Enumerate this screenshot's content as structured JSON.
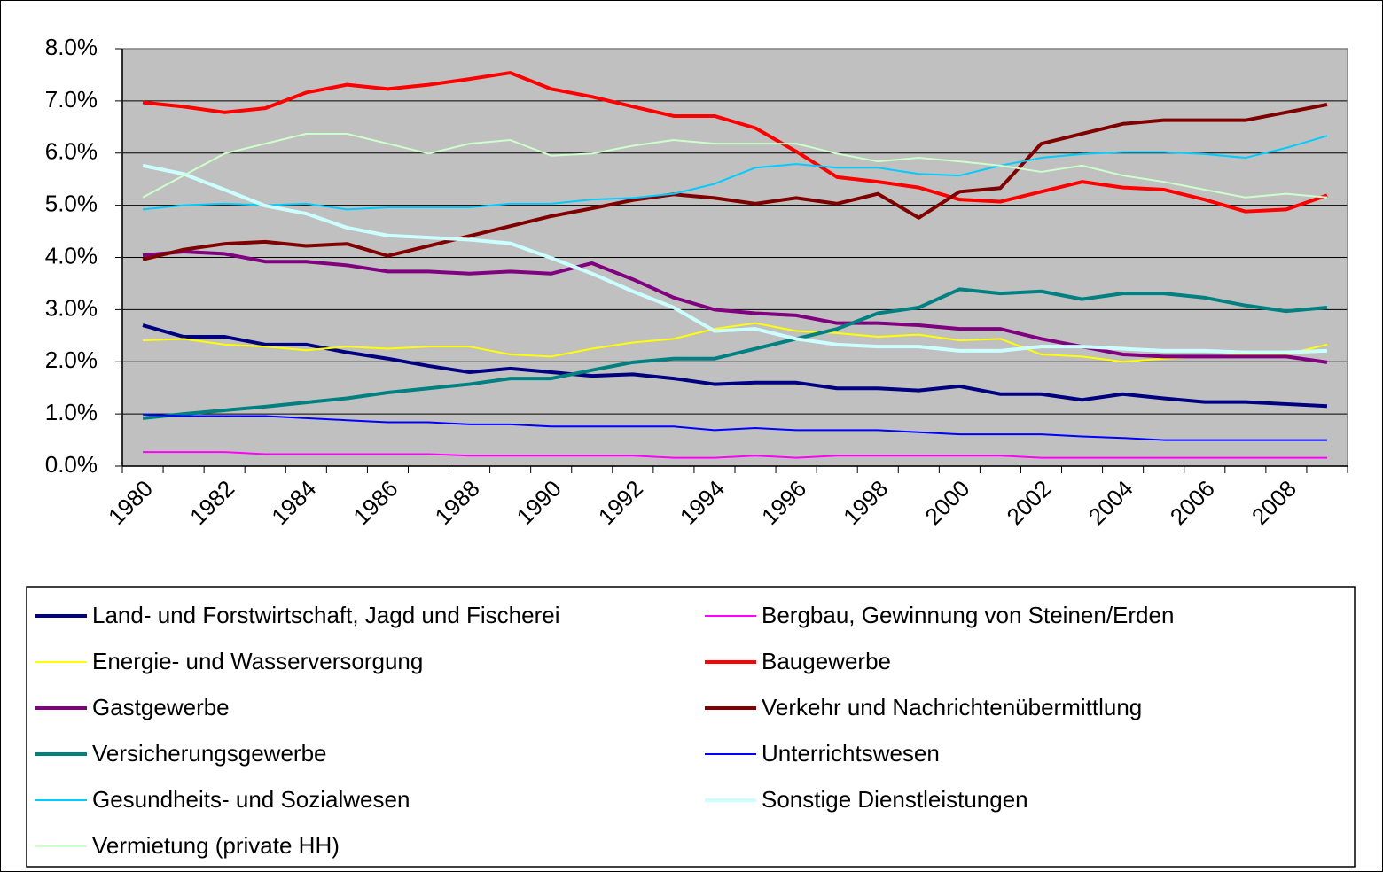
{
  "chart_data": {
    "type": "line",
    "categories": [
      "1980",
      null,
      "1982",
      null,
      "1984",
      null,
      "1986",
      null,
      "1988",
      null,
      "1990",
      null,
      "1992",
      null,
      "1994",
      null,
      "1996",
      null,
      "1998",
      null,
      "2000",
      null,
      "2002",
      null,
      "2004",
      null,
      "2006",
      null,
      "2008",
      null
    ],
    "ylim": [
      0,
      8
    ],
    "yticks": [
      {
        "value": 0,
        "label": "0.0%"
      },
      {
        "value": 1,
        "label": "1.0%"
      },
      {
        "value": 2,
        "label": "2.0%"
      },
      {
        "value": 3,
        "label": "3.0%"
      },
      {
        "value": 4,
        "label": "4.0%"
      },
      {
        "value": 5,
        "label": "5.0%"
      },
      {
        "value": 6,
        "label": "6.0%"
      },
      {
        "value": 7,
        "label": "7.0%"
      },
      {
        "value": 8,
        "label": "8.0%"
      }
    ],
    "grid": true,
    "legend": "bottom",
    "background": "#c0c0c0",
    "series": [
      {
        "name": "Land- und Forstwirtschaft, Jagd und Fischerei",
        "color": "#000080",
        "width": 4,
        "values": [
          2.7,
          2.48,
          2.48,
          2.33,
          2.33,
          2.18,
          2.06,
          1.92,
          1.8,
          1.87,
          1.8,
          1.73,
          1.76,
          1.68,
          1.57,
          1.6,
          1.6,
          1.49,
          1.49,
          1.45,
          1.53,
          1.38,
          1.38,
          1.27,
          1.38,
          1.3,
          1.23,
          1.23,
          1.19,
          1.15
        ]
      },
      {
        "name": "Bergbau, Gewinnung von Steinen/Erden",
        "color": "#ff00ff",
        "width": 2,
        "values": [
          0.27,
          0.27,
          0.27,
          0.23,
          0.23,
          0.23,
          0.23,
          0.23,
          0.2,
          0.2,
          0.2,
          0.2,
          0.2,
          0.16,
          0.16,
          0.2,
          0.16,
          0.2,
          0.2,
          0.2,
          0.2,
          0.2,
          0.16,
          0.16,
          0.16,
          0.16,
          0.16,
          0.16,
          0.16,
          0.16
        ]
      },
      {
        "name": "Energie- und Wasserversorgung",
        "color": "#ffff00",
        "width": 2,
        "values": [
          2.41,
          2.44,
          2.33,
          2.29,
          2.22,
          2.29,
          2.25,
          2.29,
          2.29,
          2.14,
          2.1,
          2.25,
          2.37,
          2.44,
          2.63,
          2.74,
          2.59,
          2.55,
          2.48,
          2.52,
          2.41,
          2.44,
          2.14,
          2.1,
          2.0,
          2.06,
          2.1,
          2.14,
          2.14,
          2.33
        ]
      },
      {
        "name": "Baugewerbe",
        "color": "#ff0000",
        "width": 4,
        "values": [
          6.97,
          6.89,
          6.78,
          6.86,
          7.16,
          7.31,
          7.23,
          7.31,
          7.42,
          7.54,
          7.23,
          7.08,
          6.89,
          6.71,
          6.71,
          6.48,
          6.03,
          5.54,
          5.45,
          5.34,
          5.11,
          5.07,
          5.26,
          5.45,
          5.34,
          5.3,
          5.11,
          4.88,
          4.92,
          5.19
        ]
      },
      {
        "name": "Gastgewerbe",
        "color": "#800080",
        "width": 4,
        "values": [
          4.04,
          4.11,
          4.07,
          3.92,
          3.92,
          3.85,
          3.73,
          3.73,
          3.69,
          3.73,
          3.69,
          3.89,
          3.58,
          3.23,
          3.0,
          2.93,
          2.89,
          2.74,
          2.74,
          2.7,
          2.63,
          2.63,
          2.44,
          2.29,
          2.14,
          2.1,
          2.1,
          2.1,
          2.1,
          1.99
        ]
      },
      {
        "name": "Verkehr und Nachrichtenübermittlung",
        "color": "#800000",
        "width": 4,
        "values": [
          3.96,
          4.15,
          4.26,
          4.3,
          4.22,
          4.26,
          4.03,
          4.22,
          4.41,
          4.6,
          4.79,
          4.94,
          5.1,
          5.21,
          5.14,
          5.03,
          5.14,
          5.03,
          5.22,
          4.76,
          5.26,
          5.33,
          6.18,
          6.37,
          6.56,
          6.63,
          6.63,
          6.63,
          6.78,
          6.93
        ]
      },
      {
        "name": "Versicherungsgewerbe",
        "color": "#008080",
        "width": 4,
        "values": [
          0.92,
          1.0,
          1.07,
          1.14,
          1.22,
          1.3,
          1.41,
          1.49,
          1.57,
          1.68,
          1.68,
          1.84,
          1.99,
          2.06,
          2.06,
          2.25,
          2.44,
          2.63,
          2.93,
          3.04,
          3.39,
          3.31,
          3.35,
          3.2,
          3.31,
          3.31,
          3.23,
          3.08,
          2.97,
          3.04
        ]
      },
      {
        "name": "Unterrichtswesen",
        "color": "#0000ff",
        "width": 2,
        "values": [
          0.99,
          0.96,
          0.96,
          0.96,
          0.92,
          0.88,
          0.84,
          0.84,
          0.8,
          0.8,
          0.76,
          0.76,
          0.76,
          0.76,
          0.69,
          0.73,
          0.69,
          0.69,
          0.69,
          0.65,
          0.61,
          0.61,
          0.61,
          0.57,
          0.54,
          0.5,
          0.5,
          0.5,
          0.5,
          0.5
        ]
      },
      {
        "name": "Gesundheits- und Sozialwesen",
        "color": "#00ccff",
        "width": 2,
        "values": [
          4.92,
          5.0,
          5.03,
          5.0,
          5.03,
          4.92,
          4.96,
          4.96,
          4.96,
          5.03,
          5.03,
          5.11,
          5.14,
          5.22,
          5.41,
          5.72,
          5.79,
          5.72,
          5.72,
          5.6,
          5.57,
          5.76,
          5.91,
          5.98,
          6.02,
          6.02,
          5.98,
          5.91,
          6.1,
          6.33
        ]
      },
      {
        "name": "Sonstige Dienstleistungen",
        "color": "#ccffff",
        "width": 4,
        "values": [
          5.76,
          5.6,
          5.3,
          4.99,
          4.84,
          4.57,
          4.42,
          4.38,
          4.34,
          4.27,
          3.99,
          3.69,
          3.35,
          3.04,
          2.59,
          2.63,
          2.44,
          2.33,
          2.29,
          2.29,
          2.21,
          2.21,
          2.29,
          2.29,
          2.25,
          2.21,
          2.21,
          2.18,
          2.18,
          2.21
        ]
      },
      {
        "name": "Vermietung (private HH)",
        "color": "#ccffcc",
        "width": 2,
        "values": [
          5.15,
          5.57,
          5.99,
          6.18,
          6.37,
          6.37,
          6.18,
          5.99,
          6.18,
          6.25,
          5.95,
          5.99,
          6.14,
          6.25,
          6.18,
          6.18,
          6.18,
          5.99,
          5.84,
          5.91,
          5.84,
          5.76,
          5.64,
          5.76,
          5.57,
          5.45,
          5.3,
          5.15,
          5.22,
          5.15
        ]
      }
    ]
  }
}
